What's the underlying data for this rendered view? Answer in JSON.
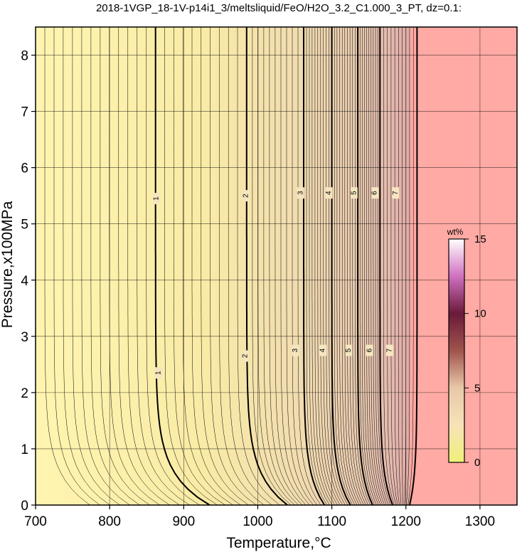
{
  "chart_data": {
    "type": "contour",
    "title": "2018-1VGP_18-1V-p14i1_3/meltsliquid/FeO/H2O_3.2_C1.000_3_PT, dz=0.1:",
    "xlabel": "Temperature,°C",
    "ylabel": "Pressure,x100MPa",
    "xlim": [
      700,
      1350
    ],
    "ylim": [
      0,
      8.5
    ],
    "x_ticks": [
      "700",
      "800",
      "900",
      "1000",
      "1100",
      "1200",
      "1300"
    ],
    "y_ticks": [
      "0",
      "1",
      "2",
      "3",
      "4",
      "5",
      "6",
      "7",
      "8"
    ],
    "grid": true,
    "colorbar": {
      "unit": "wt%",
      "range": [
        0,
        15
      ],
      "ticks": [
        "0",
        "5",
        "10",
        "15"
      ],
      "colors": [
        "#f0f07a",
        "#f7e3b8",
        "#e8c8a8",
        "#a0544c",
        "#6a1a3a",
        "#d070c0",
        "#ffffff"
      ]
    },
    "saturated_color": "#ffaaa4",
    "low_color": "#fff5b0",
    "major_contours": [
      {
        "label": "1",
        "T_at_P0": 935,
        "T_high": 862,
        "label_pos": [
          [
            863,
            5.45
          ],
          [
            866,
            2.35
          ]
        ]
      },
      {
        "label": "2",
        "T_at_P0": 1040,
        "T_high": 985,
        "label_pos": [
          [
            984,
            5.5
          ],
          [
            983,
            2.65
          ]
        ]
      },
      {
        "label": "3",
        "T_at_P0": 1090,
        "T_high": 1062,
        "label_pos": [
          [
            1058,
            5.55
          ],
          [
            1051,
            2.75
          ]
        ]
      },
      {
        "label": "4",
        "T_at_P0": 1125,
        "T_high": 1100,
        "label_pos": [
          [
            1096,
            5.55
          ],
          [
            1088,
            2.75
          ]
        ]
      },
      {
        "label": "5",
        "T_at_P0": 1155,
        "T_high": 1135,
        "label_pos": [
          [
            1130,
            5.55
          ],
          [
            1123,
            2.75
          ]
        ]
      },
      {
        "label": "6",
        "T_at_P0": 1182,
        "T_high": 1165,
        "label_pos": [
          [
            1158,
            5.55
          ],
          [
            1151,
            2.75
          ]
        ]
      },
      {
        "label": "7",
        "T_at_P0": 1205,
        "T_high": 1215,
        "label_pos": [
          [
            1186,
            5.55
          ],
          [
            1178,
            2.75
          ]
        ]
      }
    ],
    "saturation_boundary_T": 1205
  }
}
